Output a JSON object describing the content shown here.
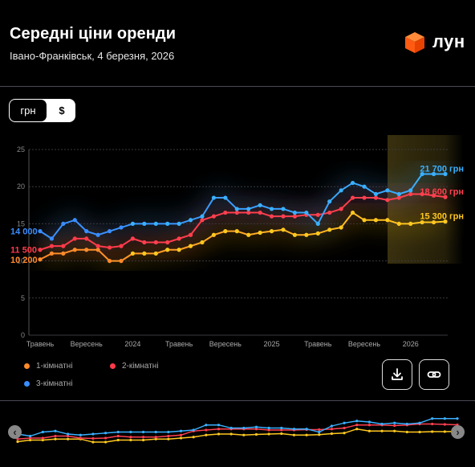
{
  "header": {
    "title": "Середні ціни оренди",
    "subtitle": "Івано-Франківськ, 4 березня, 2026",
    "logo_text": "лун"
  },
  "currency_toggle": {
    "options": [
      "грн",
      "$"
    ],
    "selected": "грн"
  },
  "legend": [
    {
      "label": "1-кімнатні",
      "color": "#ff8a2a"
    },
    {
      "label": "2-кімнатні",
      "color": "#ff3a4a"
    },
    {
      "label": "3-кімнатні",
      "color": "#3a8dff"
    }
  ],
  "actions": {
    "download_icon": "download-icon",
    "link_icon": "link-icon"
  },
  "chart_data": {
    "type": "line",
    "y_ticks": [
      "0",
      "5",
      "10",
      "15",
      "20",
      "25"
    ],
    "ylim": [
      0,
      25
    ],
    "x_tick_labels": [
      {
        "label": "Травень",
        "index": 0
      },
      {
        "label": "Вересень",
        "index": 4
      },
      {
        "label": "2024",
        "index": 8
      },
      {
        "label": "Травень",
        "index": 12
      },
      {
        "label": "Вересень",
        "index": 16
      },
      {
        "label": "2025",
        "index": 20
      },
      {
        "label": "Травень",
        "index": 24
      },
      {
        "label": "Вересень",
        "index": 28
      },
      {
        "label": "2026",
        "index": 32
      }
    ],
    "grid": true,
    "series": [
      {
        "name": "1-кімнатні",
        "color": "#ffc820",
        "start_color": "#ff8a2a",
        "start_label": "10 200",
        "end_label": "15 300 грн",
        "values": [
          10.2,
          11,
          11,
          11.5,
          11.5,
          11.5,
          10,
          10,
          11,
          11,
          11,
          11.5,
          11.5,
          12,
          12.5,
          13.5,
          14,
          14,
          13.5,
          13.8,
          14,
          14.2,
          13.5,
          13.5,
          13.7,
          14.2,
          14.5,
          16.5,
          15.5,
          15.5,
          15.5,
          15,
          15,
          15.2,
          15.2,
          15.3
        ]
      },
      {
        "name": "2-кімнатні",
        "color": "#ff4050",
        "start_color": "#ff3a4a",
        "start_label": "11 500",
        "end_label": "18 600 грн",
        "values": [
          11.5,
          12,
          12,
          13,
          13,
          12,
          11.8,
          12,
          13,
          12.5,
          12.5,
          12.5,
          13,
          13.5,
          15.5,
          16,
          16.5,
          16.5,
          16.5,
          16.5,
          16,
          16,
          16,
          16.2,
          16.2,
          16.5,
          17,
          18.5,
          18.5,
          18.5,
          18.2,
          18.5,
          19,
          19,
          18.8,
          18.6
        ]
      },
      {
        "name": "3-кімнатні",
        "color": "#3ab0ff",
        "start_color": "#3a8dff",
        "start_label": "14 000",
        "end_label": "21 700 грн",
        "values": [
          14,
          13,
          15,
          15.5,
          14,
          13.5,
          14,
          14.5,
          15,
          15,
          15,
          15,
          15,
          15.5,
          16,
          18.5,
          18.5,
          17,
          17,
          17.5,
          17,
          17,
          16.5,
          16.5,
          15,
          18,
          19.5,
          20.5,
          20,
          19,
          19.5,
          19,
          19.5,
          21.7,
          21.7,
          21.7
        ]
      }
    ]
  }
}
